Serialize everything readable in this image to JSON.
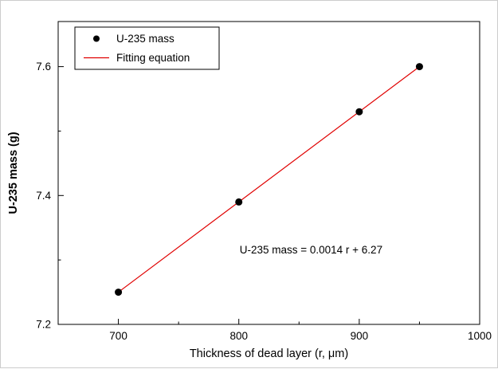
{
  "figure": {
    "background": "#ffffff",
    "border_color": "#cccccc"
  },
  "chart_data": {
    "type": "scatter",
    "title": "",
    "xlabel": "Thickness of dead layer (r, μm)",
    "ylabel": "U-235 mass (g)",
    "xlim": [
      650,
      1000
    ],
    "ylim": [
      7.2,
      7.67
    ],
    "x_tick_values": [
      700,
      800,
      900,
      1000
    ],
    "x_tick_labels": [
      "700",
      "800",
      "900",
      "1000"
    ],
    "x_minor_ticks": [
      750,
      850,
      950
    ],
    "y_tick_values": [
      7.2,
      7.4,
      7.6
    ],
    "y_tick_labels": [
      "7.2",
      "7.4",
      "7.6"
    ],
    "y_minor_ticks": [
      7.3,
      7.5
    ],
    "grid": false,
    "legend": {
      "position": "top-left",
      "border": true
    },
    "series": [
      {
        "name": "U-235 mass",
        "kind": "scatter",
        "marker": "circle",
        "color": "#000000",
        "x": [
          700,
          800,
          900,
          950
        ],
        "y": [
          7.25,
          7.39,
          7.53,
          7.6
        ]
      },
      {
        "name": "Fitting equation",
        "kind": "line",
        "color": "#e00000",
        "x": [
          700,
          950
        ],
        "y": [
          7.25,
          7.6
        ]
      }
    ],
    "annotation": {
      "text": "U-235 mass = 0.0014 r + 6.27",
      "x": 860,
      "y": 7.31
    },
    "axis_color": "#000000",
    "text_color": "#000000"
  }
}
